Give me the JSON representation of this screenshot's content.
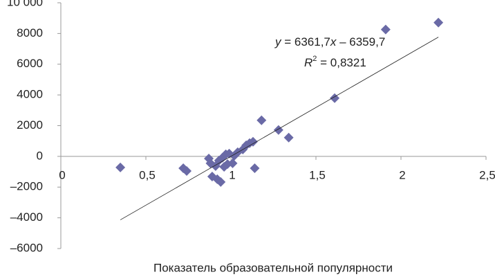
{
  "chart_data": {
    "type": "scatter",
    "x_label": "Показатель образовательной популярности",
    "xlim": [
      0,
      2.5
    ],
    "xticks": [
      0,
      {
        "value": 0.5,
        "label": "0,5"
      },
      1,
      {
        "value": 1.5,
        "label": "1,5"
      },
      2,
      {
        "value": 2.5,
        "label": "2,5"
      }
    ],
    "ylim": [
      -6000,
      10000
    ],
    "yticks": [
      {
        "value": -6000,
        "label": "–6000"
      },
      {
        "value": -4000,
        "label": "–4000"
      },
      {
        "value": -2000,
        "label": "–2000"
      },
      0,
      2000,
      4000,
      6000,
      8000,
      {
        "value": 10000,
        "label": "10 000"
      }
    ],
    "grid": false,
    "color": "#6a6aa6",
    "x": [
      0.35,
      0.72,
      0.74,
      0.87,
      0.88,
      0.89,
      0.92,
      0.94,
      0.91,
      0.93,
      0.95,
      0.97,
      0.99,
      1.01,
      0.98,
      0.96,
      1.02,
      1.04,
      1.07,
      1.09,
      1.11,
      1.13,
      1.14,
      1.18,
      1.28,
      1.34,
      1.61,
      1.91,
      2.22
    ],
    "y": [
      -720,
      -770,
      -950,
      -140,
      -450,
      -1310,
      -1490,
      -1670,
      -630,
      -270,
      -90,
      135,
      180,
      -450,
      -500,
      -680,
      45,
      270,
      450,
      720,
      860,
      950,
      -770,
      2350,
      1720,
      1220,
      3790,
      8260,
      8710
    ],
    "trendline": {
      "slope": 6361.7,
      "intercept": -6359.7
    },
    "equation": [
      "y",
      " = 6361,7",
      "x",
      " – 6359,7"
    ],
    "r_squared": [
      "R",
      "2",
      " = 0,8321"
    ]
  }
}
